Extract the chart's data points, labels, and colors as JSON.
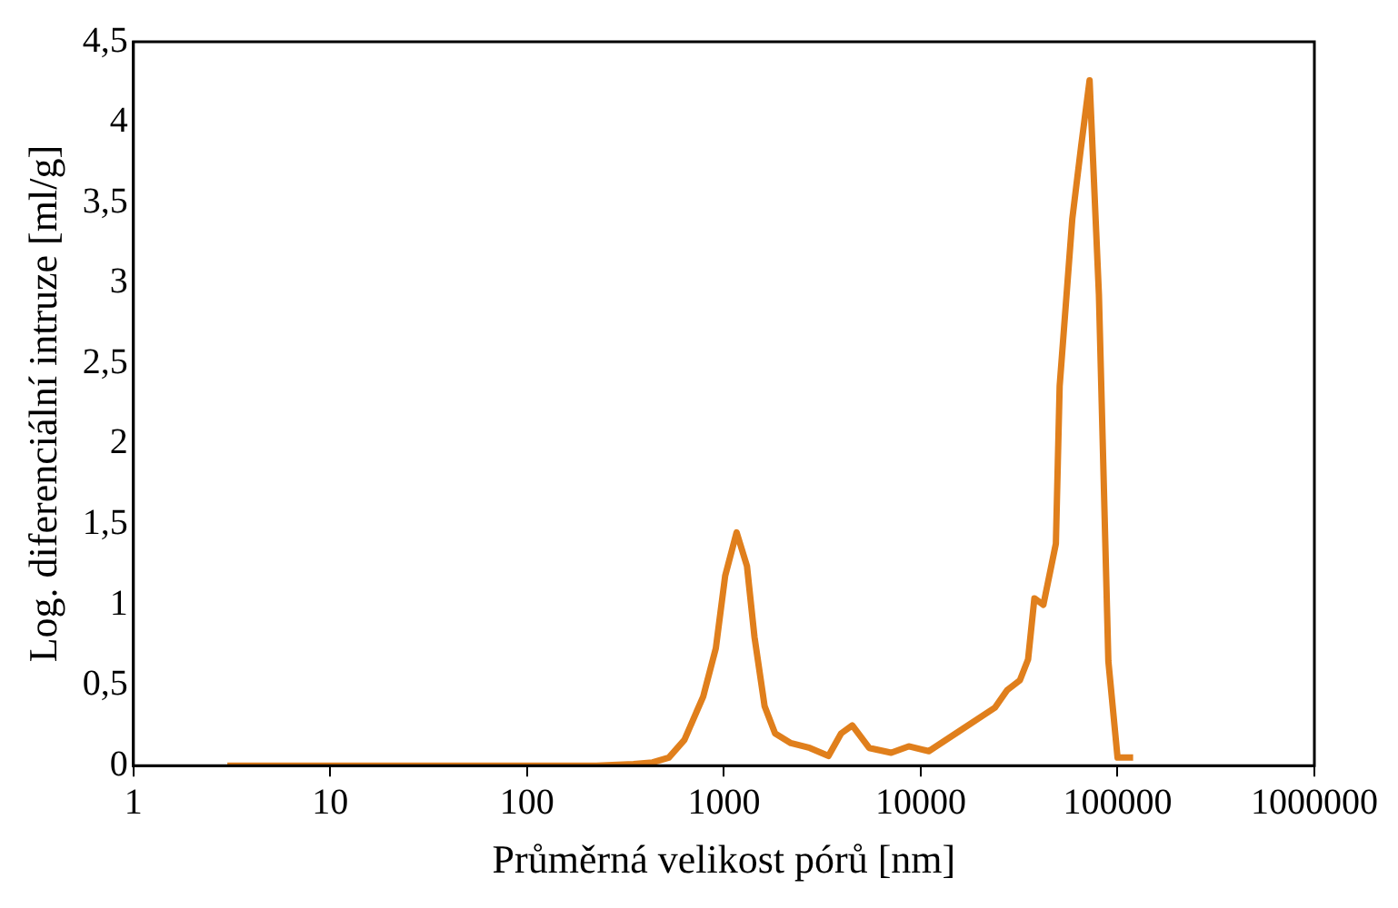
{
  "chart_data": {
    "type": "line",
    "xlabel": "Průměrná velikost pórů [nm]",
    "ylabel": "Log. diferenciální intruze [ml/g]",
    "log": "x",
    "grid": false,
    "legend": false,
    "marker": "none",
    "line_style": "solid",
    "xlim": [
      1,
      1000000
    ],
    "xticks": [
      1,
      10,
      100,
      1000,
      10000,
      100000,
      1000000
    ],
    "ylim": [
      0,
      4.5
    ],
    "yticks": [
      0,
      {
        "value": 0.5,
        "label": "0,5"
      },
      1,
      {
        "value": 1.5,
        "label": "1,5"
      },
      2,
      {
        "value": 2.5,
        "label": "2,5"
      },
      3,
      {
        "value": 3.5,
        "label": "3,5"
      },
      4,
      {
        "value": 4.5,
        "label": "4,5"
      }
    ],
    "series": [
      {
        "color": "#e07f1c",
        "x": [
          3,
          225,
          347,
          434,
          525,
          630,
          785,
          910,
          1015,
          1160,
          1310,
          1430,
          1610,
          1820,
          2190,
          2730,
          3400,
          3940,
          4490,
          5470,
          7080,
          8690,
          11000,
          15500,
          23800,
          27500,
          31900,
          35100,
          37800,
          42000,
          48600,
          50800,
          58900,
          65300,
          72100,
          80400,
          89800,
          100000,
          120000
        ],
        "values": [
          0,
          0,
          0.01,
          0.02,
          0.05,
          0.16,
          0.43,
          0.73,
          1.18,
          1.45,
          1.24,
          0.8,
          0.37,
          0.2,
          0.14,
          0.11,
          0.06,
          0.2,
          0.25,
          0.11,
          0.08,
          0.12,
          0.09,
          0.21,
          0.36,
          0.47,
          0.53,
          0.66,
          1.04,
          1.0,
          1.38,
          2.36,
          3.4,
          3.85,
          4.26,
          2.93,
          0.65,
          0.05,
          0.05
        ]
      }
    ]
  }
}
